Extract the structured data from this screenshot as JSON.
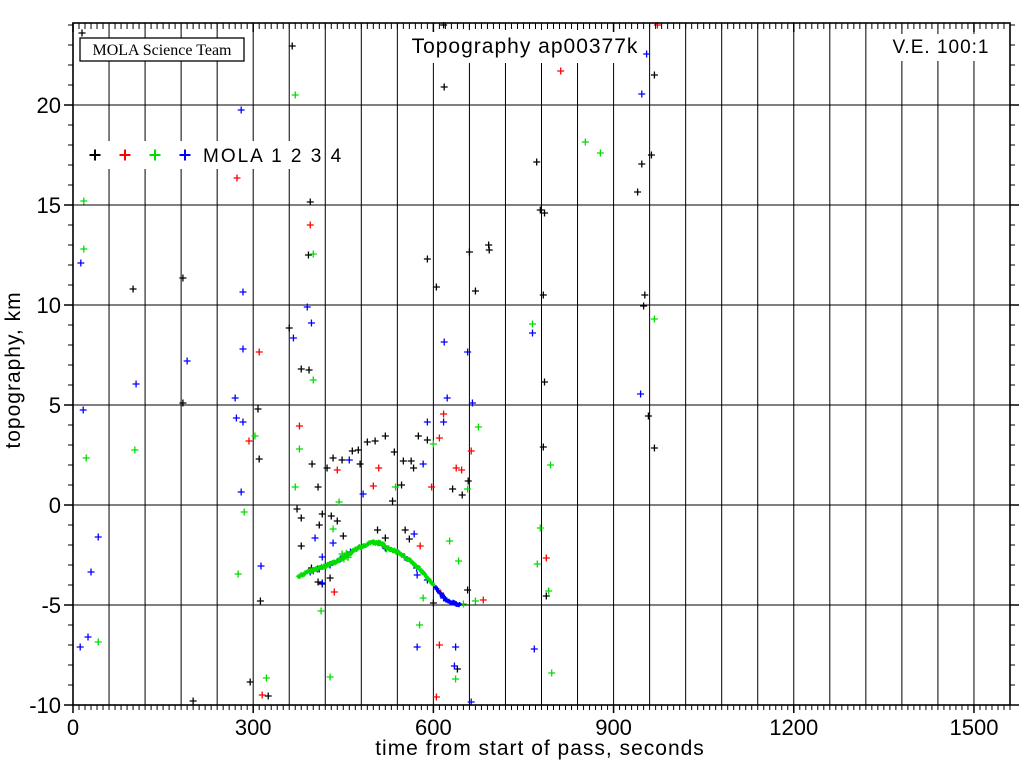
{
  "header": {
    "science_team_label": "MOLA Science Team",
    "title": "Topography ap00377k",
    "ve_label": "V.E. 100:1"
  },
  "legend": {
    "label": "MOLA 1 2 3 4",
    "marker_colors": [
      "#000000",
      "#ff0000",
      "#00dd00",
      "#0000ff"
    ]
  },
  "chart_data": {
    "type": "scatter",
    "title": "Topography ap00377k",
    "xlabel": "time from start of pass, seconds",
    "ylabel": "topography, km",
    "xlim": [
      0,
      1560
    ],
    "ylim": [
      -10,
      24.1
    ],
    "grid": true,
    "x_major_ticks": [
      0,
      300,
      600,
      900,
      1200,
      1500
    ],
    "y_major_ticks": [
      -10,
      -5,
      0,
      5,
      10,
      15,
      20
    ],
    "x_grid_interval": 60,
    "y_grid_interval": 5,
    "x_minor_tick_interval": 10,
    "y_minor_tick_interval": 1,
    "marker": "plus",
    "series": [
      {
        "name": "MOLA 1",
        "color": "#000000",
        "kind": "scatter",
        "points": [
          [
            15,
            23.6
          ],
          [
            365,
            22.95
          ],
          [
            617,
            24.0
          ],
          [
            618,
            20.9
          ],
          [
            968,
            21.5
          ],
          [
            772,
            17.15
          ],
          [
            395,
            15.15
          ],
          [
            947,
            17.05
          ],
          [
            963,
            17.5
          ],
          [
            392,
            12.5
          ],
          [
            183,
            11.35
          ],
          [
            100,
            10.8
          ],
          [
            940,
            15.65
          ],
          [
            778,
            14.75
          ],
          [
            785,
            14.6
          ],
          [
            660,
            12.65
          ],
          [
            692,
            13.0
          ],
          [
            693,
            12.75
          ],
          [
            590,
            12.3
          ],
          [
            605,
            10.9
          ],
          [
            670,
            10.7
          ],
          [
            783,
            10.5
          ],
          [
            952,
            10.5
          ],
          [
            950,
            9.95
          ],
          [
            360,
            8.85
          ],
          [
            380,
            6.8
          ],
          [
            393,
            6.75
          ],
          [
            183,
            5.1
          ],
          [
            308,
            4.8
          ],
          [
            785,
            6.15
          ],
          [
            958,
            4.45
          ],
          [
            520,
            3.45
          ],
          [
            575,
            3.45
          ],
          [
            590,
            3.25
          ],
          [
            968,
            2.85
          ],
          [
            535,
            2.65
          ],
          [
            783,
            2.9
          ],
          [
            550,
            2.2
          ],
          [
            563,
            2.2
          ],
          [
            567,
            1.85
          ],
          [
            433,
            2.35
          ],
          [
            448,
            2.25
          ],
          [
            465,
            2.7
          ],
          [
            475,
            2.75
          ],
          [
            490,
            3.15
          ],
          [
            503,
            3.2
          ],
          [
            478,
            2.05
          ],
          [
            423,
            1.85
          ],
          [
            408,
            0.9
          ],
          [
            310,
            2.3
          ],
          [
            398,
            2.05
          ],
          [
            547,
            1.0
          ],
          [
            632,
            0.8
          ],
          [
            648,
            0.5
          ],
          [
            532,
            0.2
          ],
          [
            658,
            1.2
          ],
          [
            520,
            -1.65
          ],
          [
            553,
            -1.25
          ],
          [
            560,
            -1.7
          ],
          [
            373,
            -0.2
          ],
          [
            380,
            -0.65
          ],
          [
            415,
            -0.45
          ],
          [
            430,
            -0.55
          ],
          [
            440,
            -0.8
          ],
          [
            410,
            -1.0
          ],
          [
            450,
            -1.55
          ],
          [
            507,
            -1.25
          ],
          [
            380,
            -2.05
          ],
          [
            397,
            -3.15
          ],
          [
            407,
            -3.2
          ],
          [
            408,
            -3.85
          ],
          [
            415,
            -3.95
          ],
          [
            428,
            -3.65
          ],
          [
            600,
            -4.9
          ],
          [
            657,
            -4.25
          ],
          [
            788,
            -4.55
          ],
          [
            312,
            -4.8
          ],
          [
            295,
            -8.85
          ],
          [
            325,
            -9.55
          ],
          [
            200,
            -9.8
          ],
          [
            640,
            -8.2
          ]
        ]
      },
      {
        "name": "MOLA 2",
        "color": "#ff0000",
        "kind": "scatter",
        "points": [
          [
            273,
            16.35
          ],
          [
            395,
            14.0
          ],
          [
            310,
            7.65
          ],
          [
            617,
            4.55
          ],
          [
            377,
            3.95
          ],
          [
            293,
            3.2
          ],
          [
            610,
            3.35
          ],
          [
            440,
            1.75
          ],
          [
            638,
            1.85
          ],
          [
            647,
            1.75
          ],
          [
            663,
            2.7
          ],
          [
            500,
            0.95
          ],
          [
            597,
            0.9
          ],
          [
            509,
            1.85
          ],
          [
            812,
            21.7
          ],
          [
            973,
            24.0
          ],
          [
            788,
            -2.65
          ],
          [
            578,
            -2.05
          ],
          [
            435,
            -4.35
          ],
          [
            612,
            -4.4
          ],
          [
            683,
            -4.75
          ],
          [
            605,
            -9.6
          ],
          [
            315,
            -9.5
          ],
          [
            610,
            -7.0
          ],
          [
            400,
            -3.3
          ],
          [
            452,
            -2.55
          ]
        ]
      },
      {
        "name": "MOLA 3",
        "color": "#00dd00",
        "kind": "scatter",
        "points": [
          [
            370,
            20.5
          ],
          [
            18,
            15.2
          ],
          [
            18,
            12.8
          ],
          [
            400,
            12.55
          ],
          [
            853,
            18.15
          ],
          [
            878,
            17.6
          ],
          [
            968,
            9.3
          ],
          [
            765,
            9.05
          ],
          [
            400,
            6.25
          ],
          [
            303,
            3.45
          ],
          [
            377,
            2.8
          ],
          [
            103,
            2.75
          ],
          [
            22,
            2.35
          ],
          [
            675,
            3.9
          ],
          [
            600,
            3.05
          ],
          [
            795,
            2.0
          ],
          [
            537,
            0.9
          ],
          [
            657,
            0.8
          ],
          [
            443,
            0.15
          ],
          [
            370,
            0.9
          ],
          [
            285,
            -0.35
          ],
          [
            433,
            -1.2
          ],
          [
            275,
            -3.45
          ],
          [
            627,
            -1.8
          ],
          [
            642,
            -2.8
          ],
          [
            778,
            -1.15
          ],
          [
            773,
            -2.95
          ],
          [
            792,
            -4.3
          ],
          [
            583,
            -4.65
          ],
          [
            650,
            -4.95
          ],
          [
            670,
            -4.8
          ],
          [
            413,
            -5.3
          ],
          [
            577,
            -6.0
          ],
          [
            42,
            -6.85
          ],
          [
            637,
            -8.7
          ],
          [
            322,
            -8.65
          ],
          [
            428,
            -8.6
          ],
          [
            797,
            -8.4
          ],
          [
            448,
            -2.45
          ],
          [
            451,
            -2.7
          ],
          [
            455,
            -2.42
          ],
          [
            458,
            -2.62
          ],
          [
            519,
            -2.05
          ],
          [
            522,
            -2.2
          ]
        ]
      },
      {
        "name": "MOLA 4",
        "color": "#0000ff",
        "kind": "scatter",
        "points": [
          [
            280,
            19.75
          ],
          [
            947,
            20.55
          ],
          [
            955,
            22.55
          ],
          [
            13,
            12.1
          ],
          [
            283,
            10.65
          ],
          [
            390,
            9.9
          ],
          [
            397,
            9.1
          ],
          [
            367,
            8.35
          ],
          [
            283,
            7.8
          ],
          [
            190,
            7.2
          ],
          [
            105,
            6.05
          ],
          [
            270,
            5.35
          ],
          [
            17,
            4.75
          ],
          [
            272,
            4.35
          ],
          [
            283,
            4.15
          ],
          [
            765,
            8.6
          ],
          [
            618,
            8.15
          ],
          [
            657,
            7.65
          ],
          [
            945,
            5.55
          ],
          [
            623,
            5.35
          ],
          [
            665,
            5.1
          ],
          [
            590,
            4.15
          ],
          [
            617,
            4.15
          ],
          [
            583,
            2.05
          ],
          [
            460,
            2.25
          ],
          [
            483,
            0.55
          ],
          [
            280,
            0.65
          ],
          [
            42,
            -1.6
          ],
          [
            403,
            -1.65
          ],
          [
            433,
            -1.9
          ],
          [
            415,
            -2.6
          ],
          [
            313,
            -3.05
          ],
          [
            30,
            -3.35
          ],
          [
            415,
            -3.9
          ],
          [
            568,
            -1.45
          ],
          [
            573,
            -3.5
          ],
          [
            617,
            -4.65
          ],
          [
            768,
            -7.2
          ],
          [
            25,
            -6.6
          ],
          [
            12,
            -7.1
          ],
          [
            573,
            -7.1
          ],
          [
            637,
            -7.1
          ],
          [
            635,
            -8.05
          ],
          [
            663,
            -9.85
          ],
          [
            395,
            -3.35
          ],
          [
            410,
            -3.2
          ],
          [
            428,
            -3.0
          ],
          [
            445,
            -2.7
          ],
          [
            462,
            -2.35
          ],
          [
            520,
            -2.15
          ],
          [
            552,
            -2.6
          ],
          [
            572,
            -3.15
          ],
          [
            590,
            -3.75
          ]
        ]
      },
      {
        "name": "MOLA 3 ground profile",
        "color": "#00dd00",
        "kind": "dense_profile",
        "points": [
          [
            375,
            -3.55
          ],
          [
            385,
            -3.45
          ],
          [
            395,
            -3.3
          ],
          [
            405,
            -3.2
          ],
          [
            415,
            -3.1
          ],
          [
            425,
            -3.0
          ],
          [
            435,
            -2.88
          ],
          [
            445,
            -2.72
          ],
          [
            450,
            -2.62
          ],
          [
            455,
            -2.55
          ],
          [
            462,
            -2.4
          ],
          [
            470,
            -2.22
          ],
          [
            478,
            -2.1
          ],
          [
            486,
            -2.0
          ],
          [
            494,
            -1.93
          ],
          [
            502,
            -1.88
          ],
          [
            510,
            -1.9
          ],
          [
            517,
            -1.98
          ],
          [
            523,
            -2.15
          ],
          [
            530,
            -2.24
          ],
          [
            537,
            -2.3
          ],
          [
            545,
            -2.45
          ],
          [
            553,
            -2.62
          ],
          [
            561,
            -2.78
          ],
          [
            569,
            -2.98
          ],
          [
            577,
            -3.18
          ],
          [
            584,
            -3.45
          ],
          [
            590,
            -3.68
          ],
          [
            596,
            -3.85
          ],
          [
            601,
            -4.0
          ]
        ]
      },
      {
        "name": "MOLA 4 ground profile",
        "color": "#0000ff",
        "kind": "dense_profile",
        "points": [
          [
            603,
            -4.1
          ],
          [
            609,
            -4.35
          ],
          [
            615,
            -4.55
          ],
          [
            621,
            -4.72
          ],
          [
            627,
            -4.83
          ],
          [
            633,
            -4.9
          ],
          [
            639,
            -4.96
          ],
          [
            645,
            -5.0
          ]
        ]
      }
    ]
  }
}
